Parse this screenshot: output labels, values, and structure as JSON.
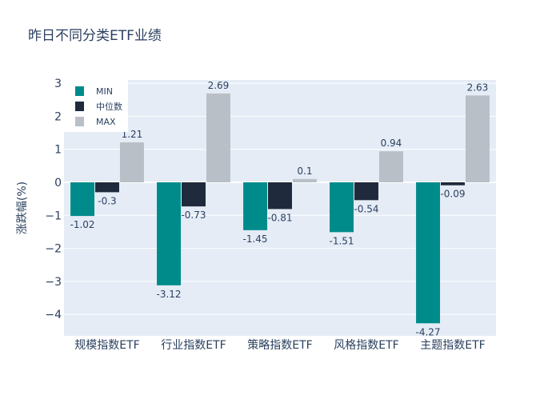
{
  "chart_data": {
    "type": "bar",
    "title": "昨日不同分类ETF业绩",
    "xlabel": "",
    "ylabel": "涨跌幅(%)",
    "categories": [
      "规模指数ETF",
      "行业指数ETF",
      "策略指数ETF",
      "风格指数ETF",
      "主题指数ETF"
    ],
    "series": [
      {
        "name": "MIN",
        "color": "#008b8b",
        "values": [
          -1.02,
          -3.12,
          -1.45,
          -1.51,
          -4.27
        ],
        "labels": [
          "-1.02",
          "-3.12",
          "-1.45",
          "-1.51",
          "-4.27"
        ]
      },
      {
        "name": "中位数",
        "color": "#1f2a3c",
        "values": [
          -0.3,
          -0.73,
          -0.81,
          -0.54,
          -0.09
        ],
        "labels": [
          "-0.3",
          "-0.73",
          "-0.81",
          "-0.54",
          "-0.09"
        ]
      },
      {
        "name": "MAX",
        "color": "#b8bfc6",
        "values": [
          1.21,
          2.69,
          0.1,
          0.94,
          2.63
        ],
        "labels": [
          "1.21",
          "2.69",
          "0.1",
          "0.94",
          "2.63"
        ]
      }
    ],
    "ylim": [
      -4.65,
      3.1
    ],
    "yticks": [
      3,
      2,
      1,
      0,
      -1,
      -2,
      -3,
      -4
    ],
    "ytick_labels": [
      "3",
      "2",
      "1",
      "0",
      "−1",
      "−2",
      "−3",
      "−4"
    ],
    "grid": true,
    "legend_position": "top-left",
    "plot_bg": "#e5ecf6"
  }
}
